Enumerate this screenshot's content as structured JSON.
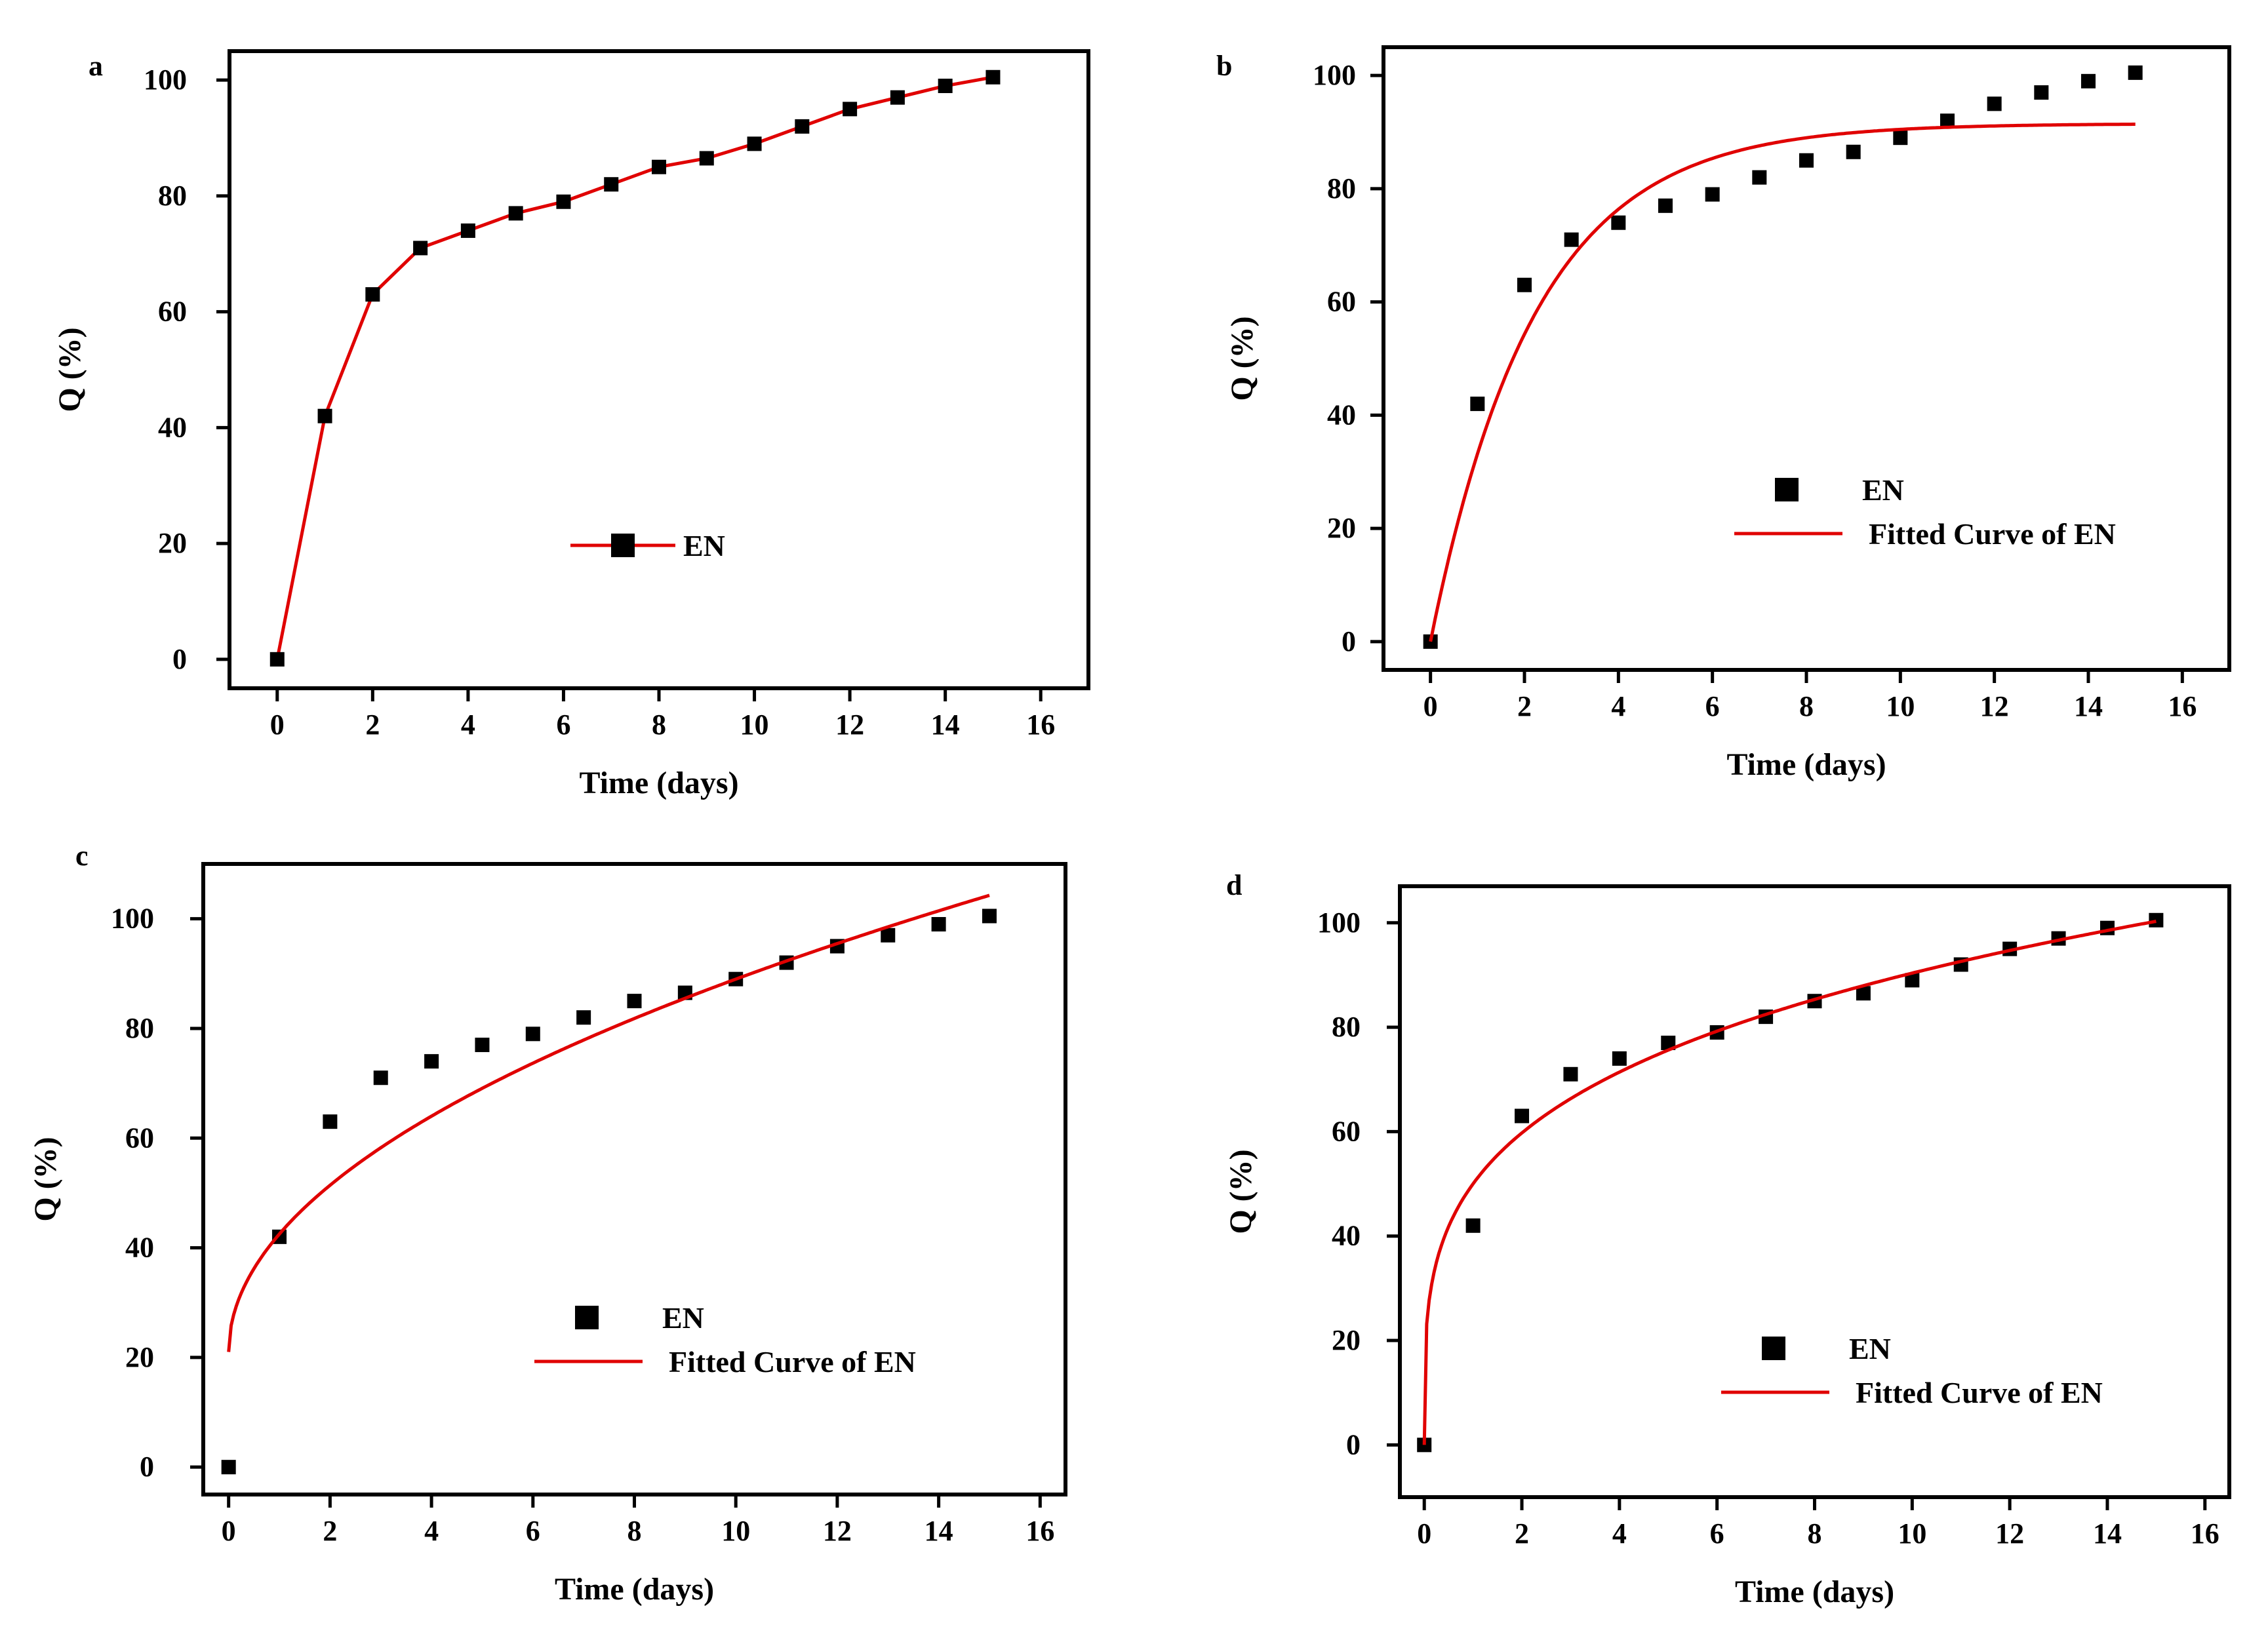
{
  "figure": {
    "colors": {
      "marker": "#000000",
      "fit_line": "#e00000",
      "axis": "#000000"
    }
  },
  "chart_data": [
    {
      "panel": "a",
      "type": "line",
      "xlabel": "Time (days)",
      "ylabel": "Q (%)",
      "xlim": [
        -1,
        17
      ],
      "ylim": [
        -5,
        105
      ],
      "xticks": [
        0,
        2,
        4,
        6,
        8,
        10,
        12,
        14,
        16
      ],
      "yticks": [
        0,
        20,
        40,
        60,
        80,
        100
      ],
      "legend": {
        "position": "center",
        "entries": [
          "EN"
        ]
      },
      "series": [
        {
          "name": "EN",
          "kind": "points_line",
          "x": [
            0,
            1,
            2,
            3,
            4,
            5,
            6,
            7,
            8,
            9,
            10,
            11,
            12,
            13,
            14,
            15
          ],
          "y": [
            0,
            42,
            63,
            71,
            74,
            77,
            79,
            82,
            85,
            86.5,
            89,
            92,
            95,
            97,
            99,
            100.5
          ]
        }
      ]
    },
    {
      "panel": "b",
      "type": "scatter",
      "xlabel": "Time (days)",
      "ylabel": "Q (%)",
      "xlim": [
        -1,
        17
      ],
      "ylim": [
        -5,
        105
      ],
      "xticks": [
        0,
        2,
        4,
        6,
        8,
        10,
        12,
        14,
        16
      ],
      "yticks": [
        0,
        20,
        40,
        60,
        80,
        100
      ],
      "legend": {
        "position": "center-right",
        "entries": [
          "EN",
          "Fitted Curve of EN"
        ]
      },
      "series": [
        {
          "name": "EN",
          "kind": "points",
          "x": [
            0,
            1,
            2,
            3,
            4,
            5,
            6,
            7,
            8,
            9,
            10,
            11,
            12,
            13,
            14,
            15
          ],
          "y": [
            0,
            42,
            63,
            71,
            74,
            77,
            79,
            82,
            85,
            86.5,
            89,
            92,
            95,
            97,
            99,
            100.5
          ]
        },
        {
          "name": "Fitted Curve of EN",
          "kind": "fit",
          "model": "first_order",
          "params": {
            "qmax": 91.5,
            "k": 0.45
          },
          "x_range": [
            0,
            15
          ]
        }
      ]
    },
    {
      "panel": "c",
      "type": "scatter",
      "xlabel": "Time (days)",
      "ylabel": "Q (%)",
      "xlim": [
        -0.5,
        16.5
      ],
      "ylim": [
        -5,
        110
      ],
      "xticks": [
        0,
        2,
        4,
        6,
        8,
        10,
        12,
        14,
        16
      ],
      "yticks": [
        0,
        20,
        40,
        60,
        80,
        100
      ],
      "legend": {
        "position": "bottom-center",
        "entries": [
          "EN",
          "Fitted Curve of EN"
        ]
      },
      "series": [
        {
          "name": "EN",
          "kind": "points",
          "x": [
            0,
            1,
            2,
            3,
            4,
            5,
            6,
            7,
            8,
            9,
            10,
            11,
            12,
            13,
            14,
            15
          ],
          "y": [
            0,
            42,
            63,
            71,
            74,
            77,
            79,
            82,
            85,
            86.5,
            89,
            92,
            95,
            97,
            99,
            100.5
          ]
        },
        {
          "name": "Fitted Curve of EN",
          "kind": "fit",
          "model": "sqrt",
          "params": {
            "a": 21,
            "b": 21.5
          },
          "x_range": [
            0,
            15
          ]
        }
      ]
    },
    {
      "panel": "d",
      "type": "scatter",
      "xlabel": "Time (days)",
      "ylabel": "Q (%)",
      "xlim": [
        -0.5,
        16.5
      ],
      "ylim": [
        -10,
        107
      ],
      "xticks": [
        0,
        2,
        4,
        6,
        8,
        10,
        12,
        14,
        16
      ],
      "yticks": [
        0,
        20,
        40,
        60,
        80,
        100
      ],
      "legend": {
        "position": "bottom-right",
        "entries": [
          "EN",
          "Fitted Curve of  EN"
        ]
      },
      "series": [
        {
          "name": "EN",
          "kind": "points",
          "x": [
            0,
            1,
            2,
            3,
            4,
            5,
            6,
            7,
            8,
            9,
            10,
            11,
            12,
            13,
            14,
            15
          ],
          "y": [
            0,
            42,
            63,
            71,
            74,
            77,
            79,
            82,
            85,
            86.5,
            89,
            92,
            95,
            97,
            99,
            100.5
          ]
        },
        {
          "name": "Fitted Curve of  EN",
          "kind": "fit",
          "model": "power",
          "params": {
            "a": 50,
            "n": 0.257
          },
          "x_range": [
            0,
            15
          ]
        }
      ]
    }
  ]
}
